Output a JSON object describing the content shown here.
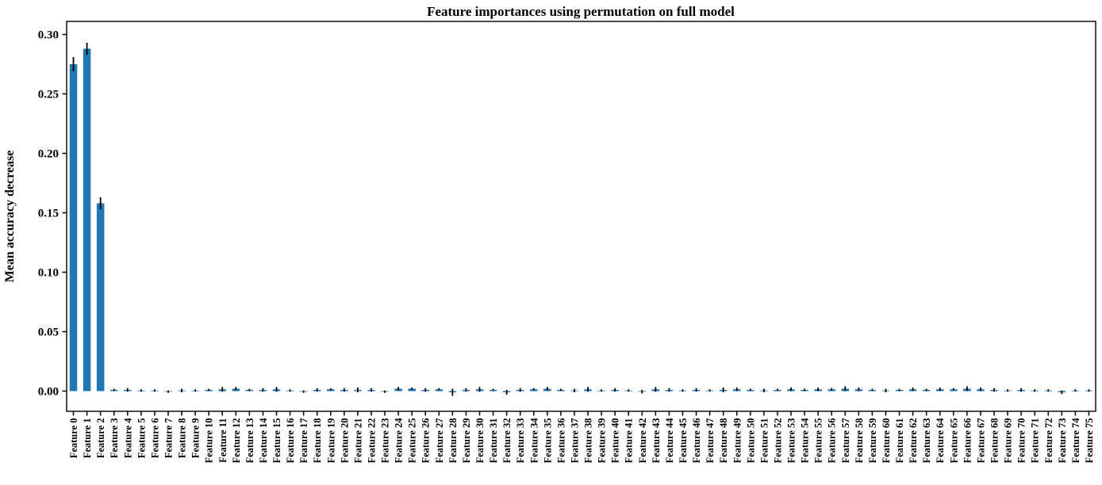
{
  "chart_data": {
    "type": "bar",
    "title": "Feature importances using permutation on full model",
    "xlabel": "",
    "ylabel": "Mean accuracy decrease",
    "bar_color": "#1f77b4",
    "error_color": "#000000",
    "grid": false,
    "legend": "none",
    "ylim": [
      -0.017,
      0.311
    ],
    "yticks": [
      0.0,
      0.05,
      0.1,
      0.15,
      0.2,
      0.25,
      0.3
    ],
    "categories": [
      "Feature 0",
      "Feature 1",
      "Feature 2",
      "Feature 3",
      "Feature 4",
      "Feature 5",
      "Feature 6",
      "Feature 7",
      "Feature 8",
      "Feature 9",
      "Feature 10",
      "Feature 11",
      "Feature 12",
      "Feature 13",
      "Feature 14",
      "Feature 15",
      "Feature 16",
      "Feature 17",
      "Feature 18",
      "Feature 19",
      "Feature 20",
      "Feature 21",
      "Feature 22",
      "Feature 23",
      "Feature 24",
      "Feature 25",
      "Feature 26",
      "Feature 27",
      "Feature 28",
      "Feature 29",
      "Feature 30",
      "Feature 31",
      "Feature 32",
      "Feature 33",
      "Feature 34",
      "Feature 35",
      "Feature 36",
      "Feature 37",
      "Feature 38",
      "Feature 39",
      "Feature 40",
      "Feature 41",
      "Feature 42",
      "Feature 43",
      "Feature 44",
      "Feature 45",
      "Feature 46",
      "Feature 47",
      "Feature 48",
      "Feature 49",
      "Feature 50",
      "Feature 51",
      "Feature 52",
      "Feature 53",
      "Feature 54",
      "Feature 55",
      "Feature 56",
      "Feature 57",
      "Feature 58",
      "Feature 59",
      "Feature 60",
      "Feature 61",
      "Feature 62",
      "Feature 63",
      "Feature 64",
      "Feature 65",
      "Feature 66",
      "Feature 67",
      "Feature 68",
      "Feature 69",
      "Feature 70",
      "Feature 71",
      "Feature 72",
      "Feature 73",
      "Feature 74",
      "Feature 75"
    ],
    "values": [
      0.275,
      0.288,
      0.158,
      0.001,
      0.001,
      0.0005,
      0.0005,
      -0.0005,
      0.0005,
      0.0005,
      0.001,
      0.0015,
      0.002,
      0.001,
      0.001,
      0.0015,
      0.0005,
      -0.0005,
      0.001,
      0.0015,
      0.001,
      0.001,
      0.001,
      -0.0005,
      0.002,
      0.002,
      0.001,
      0.0015,
      -0.001,
      0.001,
      0.0015,
      0.001,
      -0.001,
      0.001,
      0.0015,
      0.002,
      0.001,
      0.0005,
      0.0015,
      0.0005,
      0.001,
      0.0005,
      -0.0005,
      0.0015,
      0.001,
      0.0005,
      0.001,
      0.0005,
      0.001,
      0.0015,
      0.001,
      0.0005,
      0.001,
      0.0015,
      0.001,
      0.0015,
      0.0015,
      0.002,
      0.0015,
      0.001,
      0.0005,
      0.001,
      0.0015,
      0.001,
      0.0015,
      0.0015,
      0.002,
      0.0015,
      0.001,
      0.0005,
      0.001,
      0.0005,
      0.0005,
      -0.001,
      0.0005,
      0.0005
    ],
    "errors": [
      0.006,
      0.005,
      0.005,
      0.001,
      0.0015,
      0.001,
      0.001,
      0.001,
      0.0015,
      0.001,
      0.001,
      0.002,
      0.0015,
      0.001,
      0.0015,
      0.002,
      0.001,
      0.001,
      0.0015,
      0.001,
      0.0015,
      0.002,
      0.0015,
      0.001,
      0.0015,
      0.001,
      0.0015,
      0.001,
      0.003,
      0.0015,
      0.002,
      0.001,
      0.002,
      0.0015,
      0.001,
      0.0015,
      0.001,
      0.0015,
      0.002,
      0.001,
      0.0015,
      0.001,
      0.0015,
      0.002,
      0.0015,
      0.001,
      0.0015,
      0.001,
      0.002,
      0.0015,
      0.001,
      0.0015,
      0.001,
      0.0015,
      0.001,
      0.0015,
      0.001,
      0.002,
      0.0015,
      0.001,
      0.0015,
      0.001,
      0.0015,
      0.001,
      0.0015,
      0.001,
      0.002,
      0.0015,
      0.0015,
      0.001,
      0.0015,
      0.001,
      0.001,
      0.0015,
      0.001,
      0.001
    ],
    "ytick_label_format": "2dp"
  }
}
